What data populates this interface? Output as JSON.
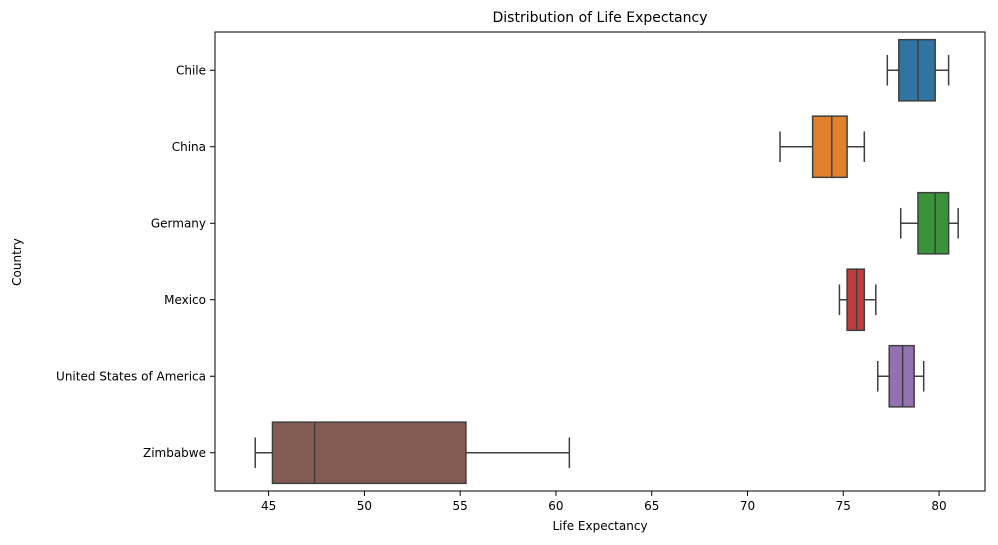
{
  "chart_data": {
    "type": "boxplot",
    "orientation": "horizontal",
    "title": "Distribution of Life Expectancy",
    "xlabel": "Life Expectancy",
    "ylabel": "Country",
    "xlim": [
      42.2,
      82.4
    ],
    "xticks": [
      45,
      50,
      55,
      60,
      65,
      70,
      75,
      80
    ],
    "grid": false,
    "series": [
      {
        "name": "Chile",
        "color": "#3274a1",
        "min": 77.3,
        "q1": 77.9,
        "median": 78.9,
        "q3": 79.8,
        "max": 80.5
      },
      {
        "name": "China",
        "color": "#e1812c",
        "min": 71.7,
        "q1": 73.4,
        "median": 74.4,
        "q3": 75.2,
        "max": 76.1
      },
      {
        "name": "Germany",
        "color": "#3a923a",
        "min": 78.0,
        "q1": 78.9,
        "median": 79.8,
        "q3": 80.5,
        "max": 81.0
      },
      {
        "name": "Mexico",
        "color": "#c03d3e",
        "min": 74.8,
        "q1": 75.2,
        "median": 75.7,
        "q3": 76.1,
        "max": 76.7
      },
      {
        "name": "United States of America",
        "color": "#9372b2",
        "min": 76.8,
        "q1": 77.4,
        "median": 78.1,
        "q3": 78.7,
        "max": 79.2
      },
      {
        "name": "Zimbabwe",
        "color": "#845b53",
        "min": 44.3,
        "q1": 45.2,
        "median": 47.4,
        "q3": 55.3,
        "max": 60.7
      }
    ]
  }
}
